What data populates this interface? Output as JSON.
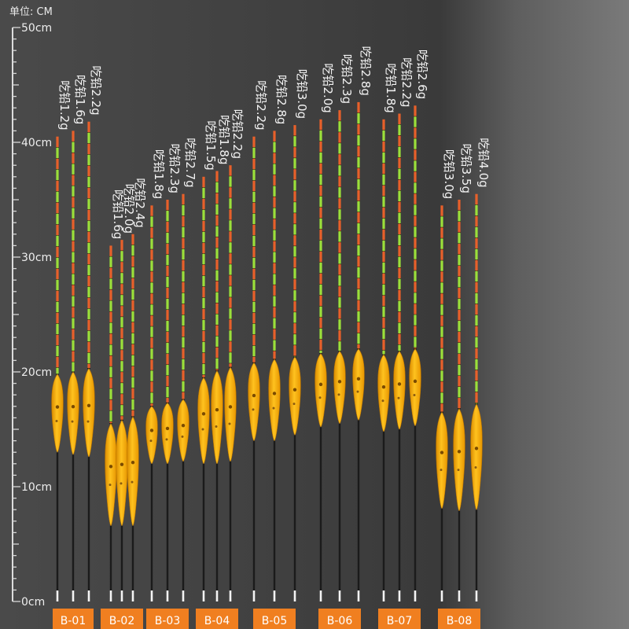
{
  "unit_label": "单位: CM",
  "chart_data": {
    "type": "bar",
    "title": "",
    "ylabel": "单位: CM",
    "ylim": [
      0,
      50
    ],
    "y_ticks": [
      "0cm",
      "10cm",
      "20cm",
      "30cm",
      "40cm",
      "50cm"
    ],
    "colors": {
      "tip_orange": "#e8602a",
      "tip_green": "#9be03a",
      "body": "#f5a800",
      "label_bg": "#f07f20"
    },
    "models": [
      {
        "code": "B-01",
        "floats": [
          {
            "weight": "吃铅1.2g",
            "top": 40.5,
            "body_top": 19.8,
            "body_bottom": 13.0
          },
          {
            "weight": "吃铅1.6g",
            "top": 41.0,
            "body_top": 20.0,
            "body_bottom": 12.8
          },
          {
            "weight": "吃铅2.2g",
            "top": 41.8,
            "body_top": 20.3,
            "body_bottom": 12.6
          }
        ]
      },
      {
        "code": "B-02",
        "floats": [
          {
            "weight": "吃铅1.6g",
            "top": 31.0,
            "body_top": 15.5,
            "body_bottom": 6.6
          },
          {
            "weight": "吃铅2.0g",
            "top": 31.5,
            "body_top": 15.8,
            "body_bottom": 6.6
          },
          {
            "weight": "吃铅2.4g",
            "top": 32.0,
            "body_top": 16.1,
            "body_bottom": 6.6
          }
        ]
      },
      {
        "code": "B-03",
        "floats": [
          {
            "weight": "吃铅1.8g",
            "top": 34.5,
            "body_top": 17.0,
            "body_bottom": 12.0
          },
          {
            "weight": "吃铅2.3g",
            "top": 35.0,
            "body_top": 17.3,
            "body_bottom": 12.0
          },
          {
            "weight": "吃铅2.7g",
            "top": 35.5,
            "body_top": 17.6,
            "body_bottom": 12.2
          }
        ]
      },
      {
        "code": "B-04",
        "floats": [
          {
            "weight": "吃铅1.5g",
            "top": 37.0,
            "body_top": 19.5,
            "body_bottom": 12.0
          },
          {
            "weight": "吃铅1.8g",
            "top": 37.5,
            "body_top": 20.1,
            "body_bottom": 12.0
          },
          {
            "weight": "吃铅2.2g",
            "top": 38.0,
            "body_top": 20.4,
            "body_bottom": 12.2
          }
        ]
      },
      {
        "code": "B-05",
        "floats": [
          {
            "weight": "吃铅2.2g",
            "top": 40.5,
            "body_top": 20.8,
            "body_bottom": 14.0
          },
          {
            "weight": "吃铅2.8g",
            "top": 41.0,
            "body_top": 21.1,
            "body_bottom": 14.0
          },
          {
            "weight": "吃铅3.0g",
            "top": 41.5,
            "body_top": 21.3,
            "body_bottom": 14.5
          }
        ]
      },
      {
        "code": "B-06",
        "floats": [
          {
            "weight": "吃铅2.0g",
            "top": 42.0,
            "body_top": 21.6,
            "body_bottom": 15.2
          },
          {
            "weight": "吃铅2.3g",
            "top": 42.8,
            "body_top": 21.8,
            "body_bottom": 15.5
          },
          {
            "weight": "吃铅2.8g",
            "top": 43.5,
            "body_top": 22.0,
            "body_bottom": 15.8
          }
        ]
      },
      {
        "code": "B-07",
        "floats": [
          {
            "weight": "吃铅1.8g",
            "top": 42.0,
            "body_top": 21.5,
            "body_bottom": 14.8
          },
          {
            "weight": "吃铅2.2g",
            "top": 42.5,
            "body_top": 21.8,
            "body_bottom": 15.0
          },
          {
            "weight": "吃铅2.6g",
            "top": 43.2,
            "body_top": 22.0,
            "body_bottom": 15.3
          }
        ]
      },
      {
        "code": "B-08",
        "floats": [
          {
            "weight": "吃铅3.0g",
            "top": 34.5,
            "body_top": 16.5,
            "body_bottom": 8.1
          },
          {
            "weight": "吃铅3.5g",
            "top": 35.0,
            "body_top": 16.8,
            "body_bottom": 7.9
          },
          {
            "weight": "吃铅4.0g",
            "top": 35.5,
            "body_top": 17.2,
            "body_bottom": 8.0
          }
        ]
      }
    ]
  }
}
